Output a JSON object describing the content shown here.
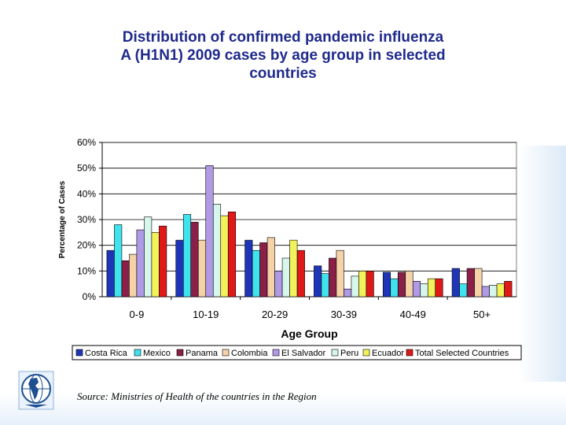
{
  "slide": {
    "title_line1": "Distribution of confirmed pandemic influenza",
    "title_line2": "A (H1N1) 2009 cases by age group in selected",
    "title_line3": "countries",
    "source": "Source: Ministries of Health of the countries in the Region",
    "logo_icon": "globe-americas-icon"
  },
  "chart_data": {
    "type": "bar",
    "title": "",
    "xlabel": "Age Group",
    "ylabel": "Percentage of Cases",
    "ylim": [
      0,
      60
    ],
    "yticks": [
      0,
      10,
      20,
      30,
      40,
      50,
      60
    ],
    "ytick_labels": [
      "0%",
      "10%",
      "20%",
      "30%",
      "40%",
      "50%",
      "60%"
    ],
    "categories": [
      "0-9",
      "10-19",
      "20-29",
      "30-39",
      "40-49",
      "50+"
    ],
    "grid": true,
    "legend_position": "bottom",
    "series": [
      {
        "name": "Costa Rica",
        "color": "#1f35b8",
        "values": [
          18,
          22,
          22,
          12,
          9.5,
          11
        ]
      },
      {
        "name": "Mexico",
        "color": "#3fe3ee",
        "values": [
          28,
          32,
          18,
          9,
          7,
          5
        ]
      },
      {
        "name": "Panama",
        "color": "#8a2048",
        "values": [
          14,
          29,
          21,
          15,
          9.5,
          11
        ]
      },
      {
        "name": "Colombia",
        "color": "#f5d2a8",
        "values": [
          16.5,
          22,
          23,
          18,
          10,
          11
        ]
      },
      {
        "name": "El Salvador",
        "color": "#b09ae6",
        "values": [
          26,
          51,
          10,
          3,
          6,
          4
        ]
      },
      {
        "name": "Peru",
        "color": "#d7f6ec",
        "values": [
          31,
          36,
          15,
          8,
          5,
          4.5
        ]
      },
      {
        "name": "Ecuador",
        "color": "#f2f25a",
        "values": [
          25,
          31.5,
          22,
          10,
          7,
          5
        ]
      },
      {
        "name": "Total Selected Countries",
        "color": "#e01818",
        "values": [
          27.5,
          33,
          18,
          10,
          7,
          6
        ]
      }
    ]
  }
}
